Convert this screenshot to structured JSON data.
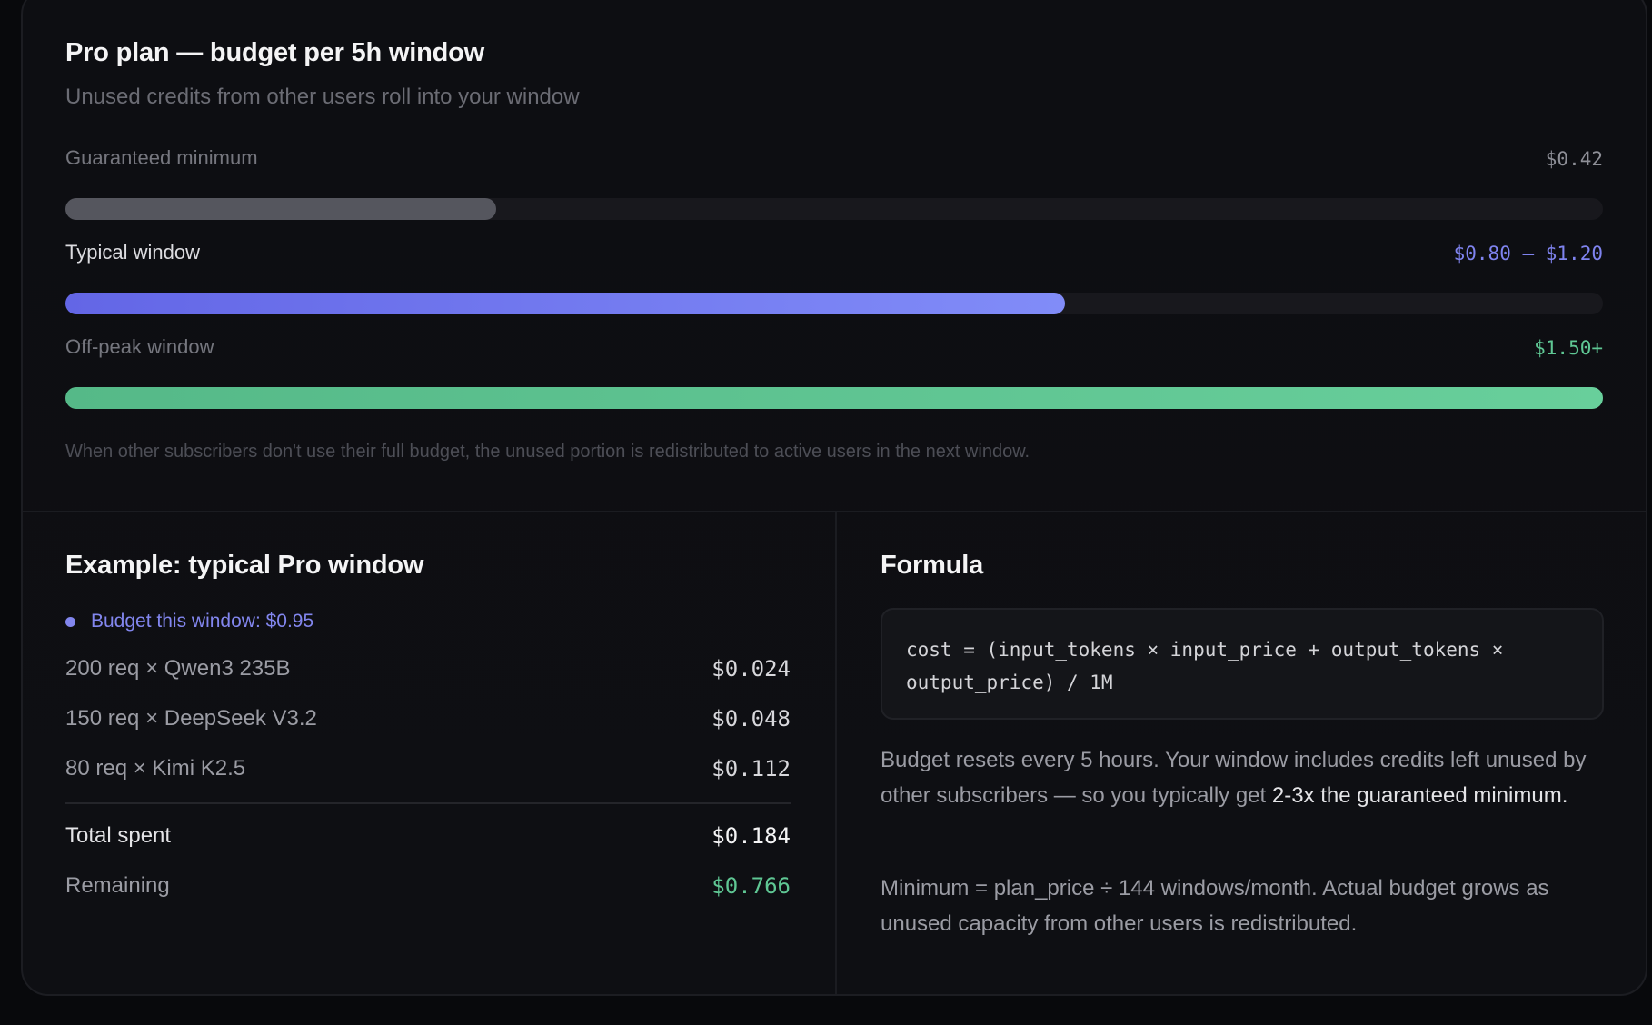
{
  "plan": {
    "title": "Pro plan — budget per 5h window",
    "subtitle": "Unused credits from other users roll into your window"
  },
  "meters": [
    {
      "label": "Guaranteed minimum",
      "value": "$0.42",
      "fill_percent": 28,
      "color": "#55565e"
    },
    {
      "label": "Typical window",
      "value": "$0.80 – $1.20",
      "fill_percent": 65,
      "color": "#6366e6"
    },
    {
      "label": "Off-peak window",
      "value": "$1.50+",
      "fill_percent": 100,
      "color": "#5fc794"
    }
  ],
  "footnote": "When other subscribers don't use their full budget, the unused portion is redistributed to active users in the next window.",
  "example": {
    "title": "Example: typical Pro window",
    "budget_line": "Budget this window: $0.95",
    "rows": [
      {
        "label": "200 req × Qwen3 235B",
        "value": "$0.024"
      },
      {
        "label": "150 req × DeepSeek V3.2",
        "value": "$0.048"
      },
      {
        "label": "80 req × Kimi K2.5",
        "value": "$0.112"
      }
    ],
    "total": {
      "label": "Total spent",
      "value": "$0.184"
    },
    "remaining": {
      "label": "Remaining",
      "value": "$0.766"
    }
  },
  "formula": {
    "title": "Formula",
    "code": "cost = (input_tokens × input_price + output_tokens × output_price) / 1M",
    "para1_pre": "Budget resets every 5 hours. Your window includes credits left unused by other subscribers — so you typically get ",
    "para1_highlight": "2-3x the guaranteed minimum.",
    "para2": "Minimum = plan_price ÷ 144 windows/month. Actual budget grows as unused capacity from other users is redistributed."
  },
  "colors": {
    "accent": "#818cf8",
    "success": "#5fc794",
    "muted": "#55565e",
    "background": "#08090c",
    "card": "#0e0f13"
  }
}
